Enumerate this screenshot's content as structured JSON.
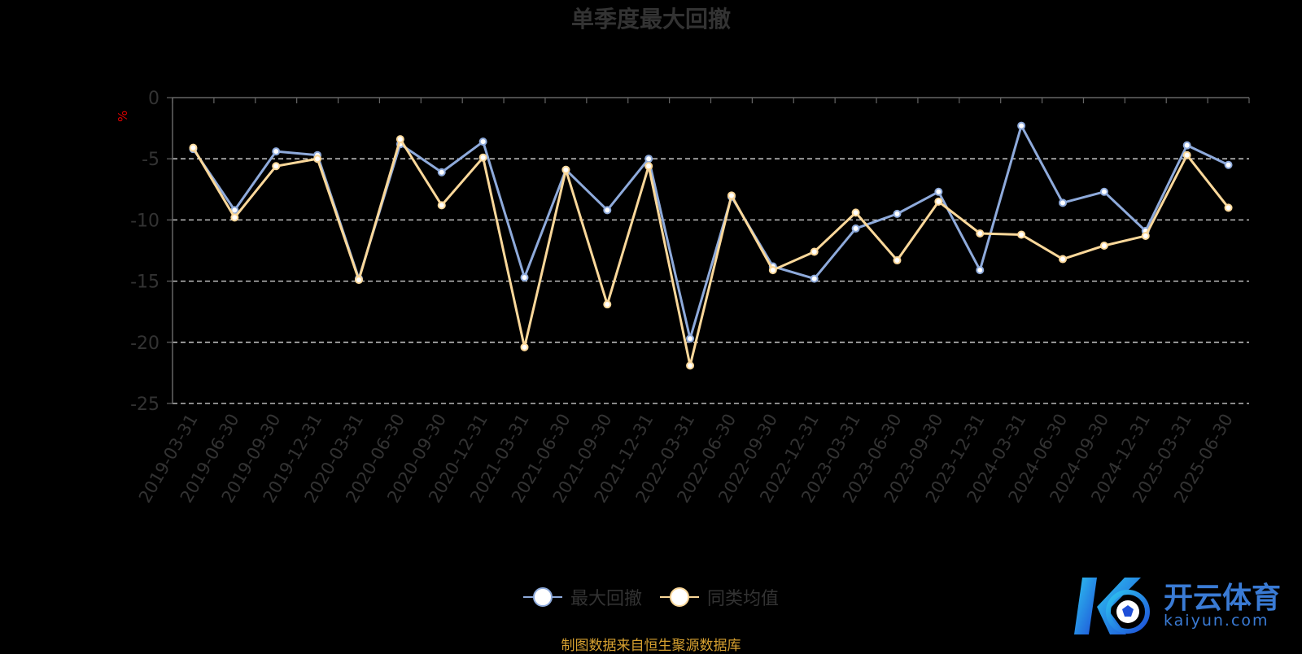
{
  "chart_data": {
    "type": "line",
    "title": "单季度最大回撤",
    "ylabel": "%",
    "ylim": [
      -25,
      0
    ],
    "yticks": [
      "0",
      "-5",
      "-10",
      "-15",
      "-20",
      "-25"
    ],
    "grid": "dashed horizontal",
    "legend_position": "bottom-center",
    "categories": [
      "2019-03-31",
      "2019-06-30",
      "2019-09-30",
      "2019-12-31",
      "2020-03-31",
      "2020-06-30",
      "2020-09-30",
      "2020-12-31",
      "2021-03-31",
      "2021-06-30",
      "2021-09-30",
      "2021-12-31",
      "2022-03-31",
      "2022-06-30",
      "2022-09-30",
      "2022-12-31",
      "2023-03-31",
      "2023-06-30",
      "2023-09-30",
      "2023-12-31",
      "2024-03-31",
      "2024-06-30",
      "2024-09-30",
      "2024-12-31",
      "2025-03-31",
      "2025-06-30"
    ],
    "series": [
      {
        "name": "最大回撤",
        "color": "#8eaadb",
        "values": [
          -4.2,
          -9.2,
          -4.4,
          -4.7,
          -14.8,
          -3.8,
          -6.1,
          -3.6,
          -14.7,
          -5.9,
          -9.2,
          -5.0,
          -19.7,
          -8.1,
          -13.8,
          -14.8,
          -10.7,
          -9.5,
          -7.7,
          -14.1,
          -2.3,
          -8.6,
          -7.7,
          -10.9,
          -3.9,
          -5.5
        ]
      },
      {
        "name": "同类均值",
        "color": "#fbd89a",
        "values": [
          -4.1,
          -9.8,
          -5.6,
          -5.0,
          -14.9,
          -3.4,
          -8.8,
          -4.9,
          -20.4,
          -5.9,
          -16.9,
          -5.6,
          -21.9,
          -8.0,
          -14.1,
          -12.6,
          -9.4,
          -13.3,
          -8.5,
          -11.1,
          -11.2,
          -13.2,
          -12.1,
          -11.3,
          -4.7,
          -9.0
        ]
      }
    ]
  },
  "legend": {
    "items": [
      {
        "label": "最大回撤",
        "color": "#8eaadb"
      },
      {
        "label": "同类均值",
        "color": "#fbd89a"
      }
    ]
  },
  "footer": {
    "source": "制图数据来自恒生聚源数据库"
  },
  "watermark": {
    "brand": "开云体育",
    "domain": "kaiyun.com"
  }
}
